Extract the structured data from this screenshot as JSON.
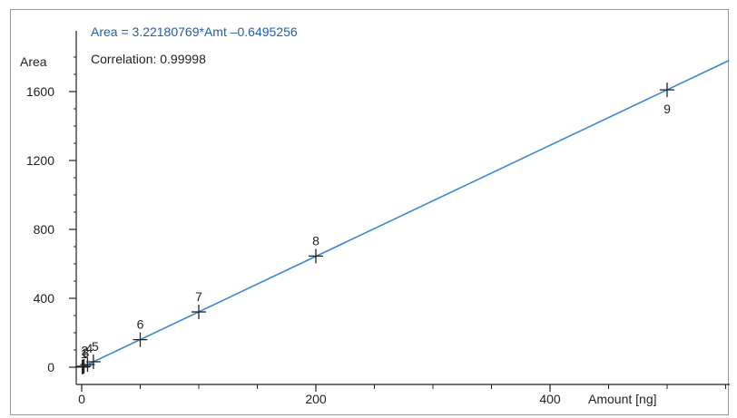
{
  "chart_data": {
    "type": "scatter",
    "equation": "Area = 3.22180769*Amt –0.6495256",
    "correlation": "Correlation: 0.99998",
    "xlabel": "Amount [ng]",
    "ylabel": "Area",
    "xlim": [
      0,
      550
    ],
    "ylim": [
      -80,
      1800
    ],
    "x_ticks": [
      0,
      200,
      400
    ],
    "y_ticks": [
      0,
      400,
      800,
      1200,
      1600
    ],
    "fit": {
      "slope": 3.22180769,
      "intercept": -0.6495256
    },
    "points": [
      {
        "label": "1",
        "x": 0.5,
        "y": 1
      },
      {
        "label": "2",
        "x": 1,
        "y": 2.6
      },
      {
        "label": "3",
        "x": 2,
        "y": 5.8
      },
      {
        "label": "4",
        "x": 5,
        "y": 15.5
      },
      {
        "label": "5",
        "x": 10,
        "y": 31.6
      },
      {
        "label": "6",
        "x": 50,
        "y": 160
      },
      {
        "label": "7",
        "x": 100,
        "y": 321
      },
      {
        "label": "8",
        "x": 200,
        "y": 645
      },
      {
        "label": "9",
        "x": 500,
        "y": 1610
      }
    ],
    "grid": false,
    "colors": {
      "fit_line": "#3d86d6",
      "equation_text": "#1f5fa8",
      "markers": "#222222"
    }
  }
}
